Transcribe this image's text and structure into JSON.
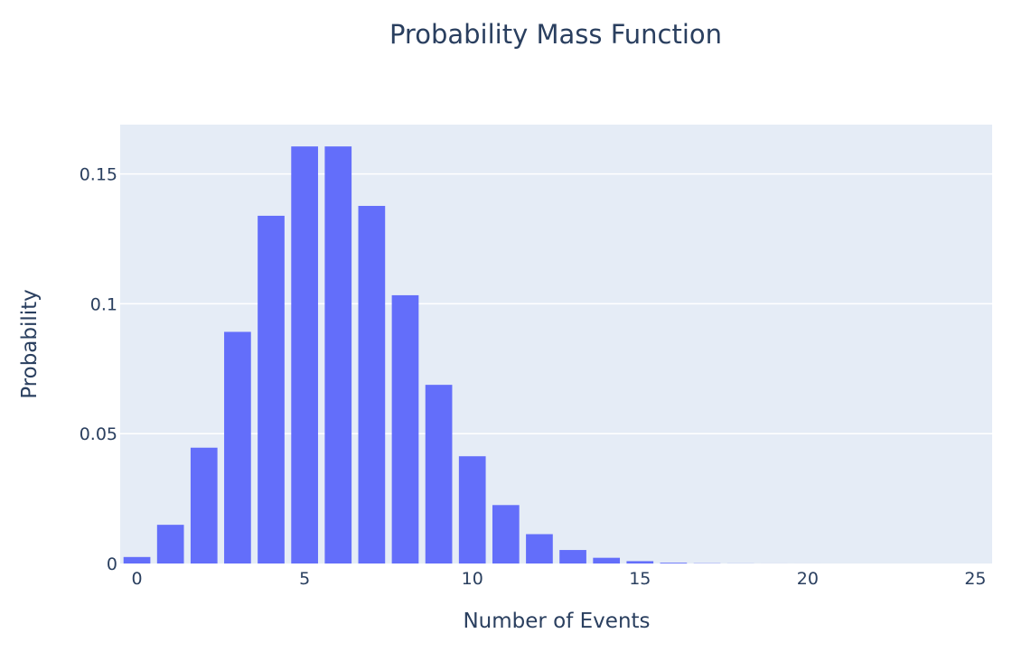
{
  "chart_data": {
    "type": "bar",
    "title": "Probability Mass Function",
    "xlabel": "Number of Events",
    "ylabel": "Probability",
    "x": [
      0,
      1,
      2,
      3,
      4,
      5,
      6,
      7,
      8,
      9,
      10,
      11,
      12,
      13,
      14,
      15,
      16,
      17,
      18,
      19,
      20,
      21,
      22,
      23,
      24,
      25
    ],
    "values": [
      0.0025,
      0.0149,
      0.0446,
      0.0892,
      0.1339,
      0.1606,
      0.1606,
      0.1377,
      0.1033,
      0.0688,
      0.0413,
      0.0225,
      0.0113,
      0.0052,
      0.0022,
      0.0009,
      0.0003,
      0.0001,
      4e-05,
      1e-05,
      4e-06,
      1e-06,
      3e-07,
      1e-07,
      2e-08,
      1e-08
    ],
    "xlim": [
      -0.5,
      25.5
    ],
    "ylim": [
      0,
      0.169
    ],
    "x_ticks": [
      0,
      5,
      10,
      15,
      20,
      25
    ],
    "x_tick_labels": [
      "0",
      "5",
      "10",
      "15",
      "20",
      "25"
    ],
    "y_ticks": [
      0,
      0.05,
      0.1,
      0.15
    ],
    "y_tick_labels": [
      "0",
      "0.05",
      "0.1",
      "0.15"
    ],
    "grid": true,
    "colors": {
      "bar": "#636efa",
      "plot_bg": "#e5ecf6",
      "text": "#2a3f5f"
    }
  }
}
